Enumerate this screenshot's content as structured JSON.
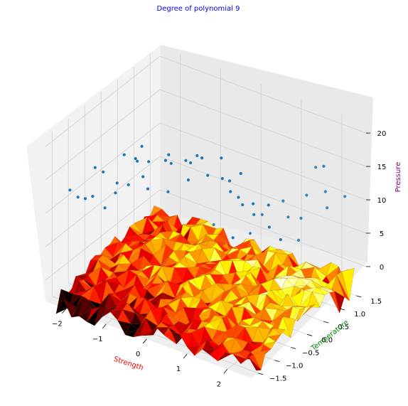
{
  "chart_data": {
    "type": "3d-surface-scatter",
    "title": "Degree of polynomial 9",
    "title_color": "#0000ff",
    "xlabel": "Strength",
    "xlabel_color": "#ff0000",
    "ylabel": "Temperature",
    "ylabel_color": "#008000",
    "zlabel": "Pressure",
    "zlabel_color": "#800080",
    "x_ticks": [
      "−2",
      "−1",
      "0",
      "1",
      "2"
    ],
    "x_tick_values": [
      -2,
      -1,
      0,
      1,
      2
    ],
    "y_ticks": [
      "−1.5",
      "−1.0",
      "−0.5",
      "0.0",
      "0.5",
      "1.0",
      "1.5"
    ],
    "y_tick_values": [
      -1.5,
      -1.0,
      -0.5,
      0.0,
      0.5,
      1.0,
      1.5
    ],
    "z_ticks": [
      "0",
      "5",
      "10",
      "15",
      "20"
    ],
    "z_tick_values": [
      0,
      5,
      10,
      15,
      20
    ],
    "xlim": [
      -2.5,
      2.6
    ],
    "ylim": [
      -1.7,
      1.8
    ],
    "zlim": [
      -3.2,
      21.5
    ],
    "grid": true,
    "scatter_color": "#1f77b4",
    "surface_colormap": "hot",
    "surface_z_range": [
      -3.6,
      1.2
    ],
    "scatter": [
      {
        "x": -2.3,
        "y": -1.2,
        "z": 12.0
      },
      {
        "x": -2.1,
        "y": -1.2,
        "z": 11.4
      },
      {
        "x": -2.0,
        "y": -1.1,
        "z": 11.0
      },
      {
        "x": -1.9,
        "y": -1.0,
        "z": 11.2
      },
      {
        "x": -2.0,
        "y": -0.8,
        "z": 14.5
      },
      {
        "x": -1.8,
        "y": -0.8,
        "z": 14.3
      },
      {
        "x": -1.7,
        "y": -0.5,
        "z": 11.7
      },
      {
        "x": -1.9,
        "y": -0.3,
        "z": 9.0
      },
      {
        "x": -2.0,
        "y": -0.5,
        "z": 7.3
      },
      {
        "x": -1.5,
        "y": -0.4,
        "z": 11.5
      },
      {
        "x": -1.2,
        "y": -0.9,
        "z": 18.6
      },
      {
        "x": -1.0,
        "y": -0.8,
        "z": 18.1
      },
      {
        "x": -1.2,
        "y": -0.5,
        "z": 16.1
      },
      {
        "x": -1.0,
        "y": -0.4,
        "z": 16.1
      },
      {
        "x": -1.3,
        "y": -0.2,
        "z": 12.4
      },
      {
        "x": -1.1,
        "y": -0.3,
        "z": 11.4
      },
      {
        "x": -0.6,
        "y": -0.3,
        "z": 12.1
      },
      {
        "x": -1.2,
        "y": 0.2,
        "z": 4.1
      },
      {
        "x": -0.9,
        "y": 0.1,
        "z": 5.6
      },
      {
        "x": -0.5,
        "y": -0.5,
        "z": 17.8
      },
      {
        "x": -0.1,
        "y": -0.9,
        "z": 21.1
      },
      {
        "x": -0.1,
        "y": -0.3,
        "z": 15.0
      },
      {
        "x": 0.0,
        "y": -0.5,
        "z": 18.9
      },
      {
        "x": 0.2,
        "y": -0.4,
        "z": 19.7
      },
      {
        "x": 0.2,
        "y": -0.6,
        "z": 19.4
      },
      {
        "x": 0.3,
        "y": -0.2,
        "z": 16.2
      },
      {
        "x": 0.5,
        "y": 0.0,
        "z": 15.4
      },
      {
        "x": 0.6,
        "y": 0.1,
        "z": 14.9
      },
      {
        "x": 0.7,
        "y": 0.0,
        "z": 13.9
      },
      {
        "x": 0.9,
        "y": 0.0,
        "z": 13.5
      },
      {
        "x": 1.0,
        "y": 0.0,
        "z": 12.6
      },
      {
        "x": 1.1,
        "y": 0.2,
        "z": 12.2
      },
      {
        "x": 1.2,
        "y": 0.1,
        "z": 11.2
      },
      {
        "x": 0.4,
        "y": -0.5,
        "z": 20.2
      },
      {
        "x": 0.8,
        "y": -0.4,
        "z": 20.7
      },
      {
        "x": 1.2,
        "y": -0.3,
        "z": 18.9
      },
      {
        "x": 1.4,
        "y": 0.3,
        "z": 12.3
      },
      {
        "x": 1.6,
        "y": 0.5,
        "z": 12.6
      },
      {
        "x": 2.0,
        "y": 1.0,
        "z": 16.6
      },
      {
        "x": 2.2,
        "y": 1.0,
        "z": 17.2
      },
      {
        "x": 2.0,
        "y": 1.3,
        "z": 11.8
      },
      {
        "x": 2.2,
        "y": 1.1,
        "z": 10.6
      },
      {
        "x": 1.8,
        "y": 0.8,
        "z": 9.3
      },
      {
        "x": 1.9,
        "y": 0.6,
        "z": 7.0
      },
      {
        "x": 1.7,
        "y": 0.3,
        "z": 7.8
      },
      {
        "x": 1.5,
        "y": 0.2,
        "z": 9.6
      },
      {
        "x": 2.4,
        "y": 1.4,
        "z": 11.6
      },
      {
        "x": 2.1,
        "y": 0.6,
        "z": 14.2
      },
      {
        "x": -0.6,
        "y": 0.5,
        "z": 4.4
      },
      {
        "x": -0.2,
        "y": 0.6,
        "z": 4.6
      },
      {
        "x": 0.3,
        "y": 0.3,
        "z": 4.8
      },
      {
        "x": 0.6,
        "y": 0.2,
        "z": 6.0
      },
      {
        "x": -0.7,
        "y": 0.7,
        "z": 1.8
      },
      {
        "x": -0.4,
        "y": 0.9,
        "z": 2.1
      },
      {
        "x": 0.3,
        "y": 1.1,
        "z": 2.5
      },
      {
        "x": -1.5,
        "y": 0.6,
        "z": 1.0
      },
      {
        "x": -1.7,
        "y": 0.9,
        "z": -0.4
      },
      {
        "x": -1.0,
        "y": 1.1,
        "z": 0.7
      },
      {
        "x": -0.2,
        "y": -0.7,
        "z": 18.8
      },
      {
        "x": -0.6,
        "y": -1.1,
        "z": 22.0
      },
      {
        "x": 1.0,
        "y": 0.6,
        "z": 8.8
      },
      {
        "x": 1.4,
        "y": 0.9,
        "z": 8.2
      }
    ]
  }
}
